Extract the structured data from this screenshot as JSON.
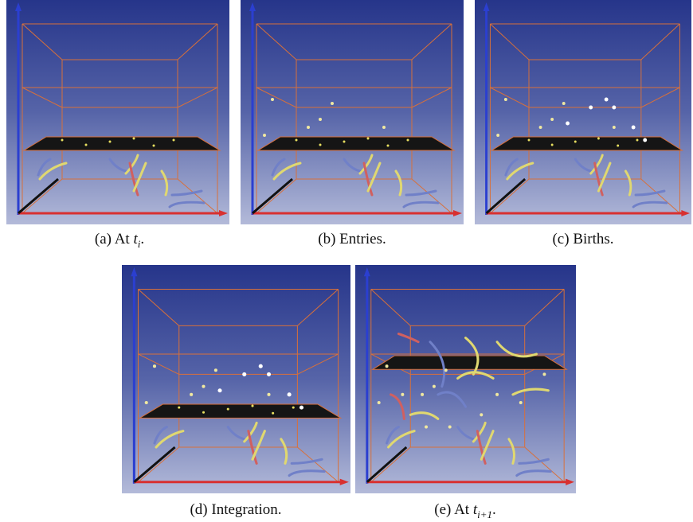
{
  "panels": [
    {
      "caption": {
        "label": "(a)",
        "text": "At",
        "math": "t",
        "subscript": "i",
        "end": "."
      }
    },
    {
      "caption": {
        "label": "(b)",
        "text": "Entries."
      }
    },
    {
      "caption": {
        "label": "(c)",
        "text": "Births."
      }
    },
    {
      "caption": {
        "label": "(d)",
        "text": "Integration."
      }
    },
    {
      "caption": {
        "label": "(e)",
        "text": "At",
        "math": "t",
        "subscript": "i+1",
        "end": "."
      }
    }
  ]
}
